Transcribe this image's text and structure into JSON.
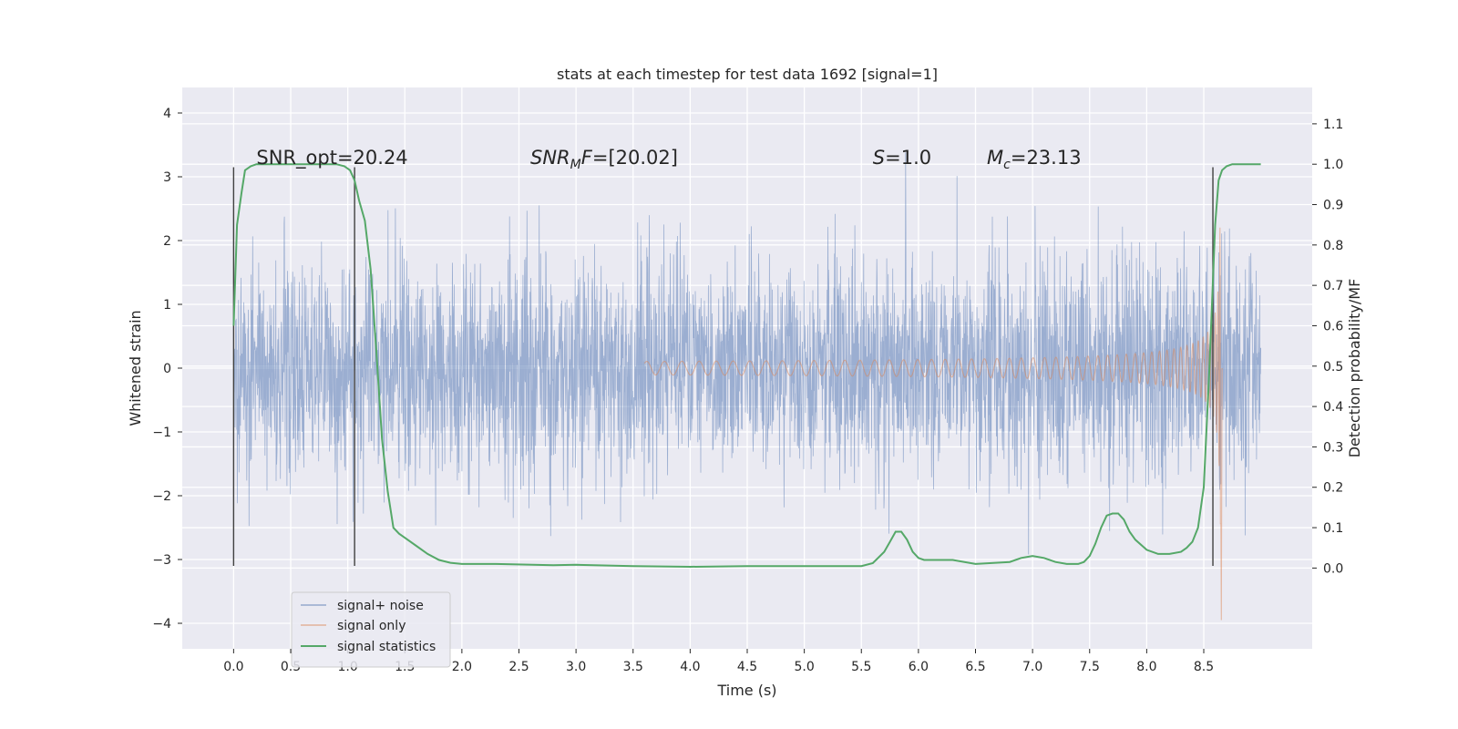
{
  "chart_data": {
    "type": "line",
    "title": "stats at each timestep for test data 1692 [signal=1]",
    "xlabel": "Time (s)",
    "ylabel_left": "Whitened strain",
    "ylabel_right": "Detection probability/MF",
    "xlim": [
      -0.45,
      9.45
    ],
    "ylim_left": [
      -4.4,
      4.4
    ],
    "ylim_right": [
      -0.2,
      1.19
    ],
    "grid": true,
    "legend_placement": "lower-left",
    "x_ticks": [
      "0.0",
      "0.5",
      "1.0",
      "1.5",
      "2.0",
      "2.5",
      "3.0",
      "3.5",
      "4.0",
      "4.5",
      "5.0",
      "5.5",
      "6.0",
      "6.5",
      "7.0",
      "7.5",
      "8.0",
      "8.5"
    ],
    "y_left_ticks": [
      "4",
      "3",
      "2",
      "1",
      "0",
      "−1",
      "−2",
      "−3",
      "−4"
    ],
    "y_right_ticks": [
      "1.1",
      "1.0",
      "0.9",
      "0.8",
      "0.7",
      "0.6",
      "0.5",
      "0.4",
      "0.3",
      "0.2",
      "0.1",
      "0.0"
    ],
    "annotations": [
      {
        "x": 0.2,
        "y": 3.2,
        "parts": [
          {
            "t": "SNR_opt=20.24",
            "it": false
          }
        ]
      },
      {
        "x": 2.6,
        "y": 3.2,
        "parts": [
          {
            "t": "SNR",
            "it": true
          },
          {
            "t": "M",
            "it": true,
            "sub": true
          },
          {
            "t": "F",
            "it": true
          },
          {
            "t": "=[20.02]",
            "it": false
          }
        ]
      },
      {
        "x": 5.6,
        "y": 3.2,
        "parts": [
          {
            "t": "S",
            "it": true
          },
          {
            "t": "=1.0",
            "it": false
          }
        ]
      },
      {
        "x": 6.6,
        "y": 3.2,
        "parts": [
          {
            "t": "M",
            "it": true
          },
          {
            "t": "c",
            "it": true,
            "sub": true
          },
          {
            "t": "=23.13",
            "it": false
          }
        ]
      }
    ],
    "vertical_markers": [
      {
        "x": 0.0,
        "y0": -3.1,
        "y1": 3.15
      },
      {
        "x": 1.06,
        "y0": -3.1,
        "y1": 3.15
      },
      {
        "x": 8.58,
        "y0": -3.1,
        "y1": 3.15
      }
    ],
    "noise": {
      "x_start": 0.0,
      "x_end": 9.0,
      "sigma": 0.85,
      "max": 4.0,
      "min": -3.35
    },
    "chirp": {
      "start": 3.6,
      "merger": 8.65,
      "peak": 3.4,
      "min": -3.95
    },
    "series": [
      {
        "name": "signal+ noise",
        "color": "#4c72b0"
      },
      {
        "name": "signal only",
        "color": "#dd8452"
      },
      {
        "name": "signal statistics",
        "color": "#55a868",
        "x": [
          0.0,
          0.03,
          0.07,
          0.1,
          0.15,
          0.2,
          0.3,
          0.5,
          0.7,
          0.9,
          0.97,
          1.02,
          1.06,
          1.1,
          1.15,
          1.2,
          1.25,
          1.3,
          1.35,
          1.4,
          1.45,
          1.5,
          1.6,
          1.7,
          1.8,
          1.9,
          2.0,
          2.3,
          2.8,
          3.0,
          3.5,
          4.0,
          4.5,
          5.0,
          5.5,
          5.6,
          5.7,
          5.75,
          5.8,
          5.85,
          5.9,
          5.95,
          6.0,
          6.05,
          6.1,
          6.3,
          6.5,
          6.8,
          6.9,
          7.0,
          7.1,
          7.2,
          7.3,
          7.4,
          7.45,
          7.5,
          7.55,
          7.6,
          7.65,
          7.7,
          7.75,
          7.8,
          7.85,
          7.9,
          8.0,
          8.1,
          8.2,
          8.3,
          8.35,
          8.4,
          8.45,
          8.5,
          8.55,
          8.6,
          8.63,
          8.66,
          8.7,
          8.75,
          8.8,
          9.0
        ],
        "y": [
          0.6,
          0.85,
          0.93,
          0.985,
          0.995,
          1.0,
          1.0,
          1.0,
          1.0,
          1.0,
          0.995,
          0.985,
          0.96,
          0.91,
          0.86,
          0.74,
          0.54,
          0.32,
          0.19,
          0.1,
          0.085,
          0.075,
          0.055,
          0.035,
          0.02,
          0.013,
          0.01,
          0.01,
          0.007,
          0.008,
          0.005,
          0.003,
          0.005,
          0.005,
          0.005,
          0.012,
          0.04,
          0.065,
          0.09,
          0.09,
          0.07,
          0.04,
          0.025,
          0.02,
          0.02,
          0.02,
          0.01,
          0.015,
          0.025,
          0.03,
          0.025,
          0.015,
          0.01,
          0.01,
          0.015,
          0.03,
          0.06,
          0.1,
          0.13,
          0.135,
          0.135,
          0.12,
          0.09,
          0.07,
          0.045,
          0.035,
          0.035,
          0.04,
          0.05,
          0.065,
          0.1,
          0.2,
          0.5,
          0.85,
          0.96,
          0.985,
          0.995,
          1.0,
          1.0,
          1.0
        ]
      }
    ]
  }
}
